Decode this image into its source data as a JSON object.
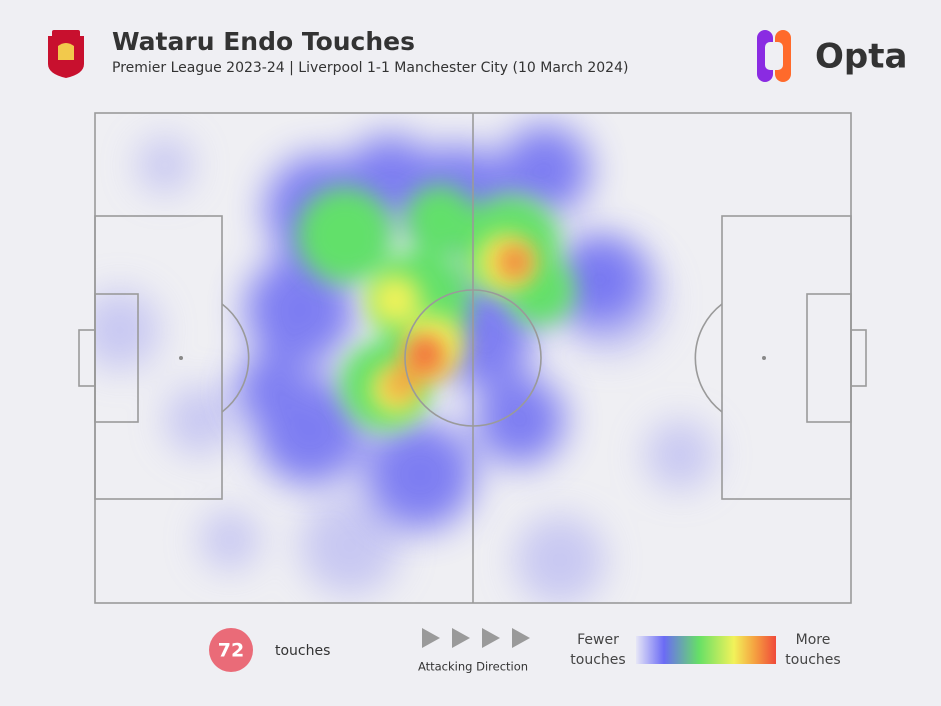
{
  "header": {
    "title": "Wataru Endo Touches",
    "subtitle": "Premier League 2023-24 | Liverpool 1-1 Manchester City (10 March 2024)",
    "brand": "Opta"
  },
  "footer": {
    "touches": 72,
    "touches_label": "touches",
    "direction_label": "Attacking Direction",
    "legend_low": "Fewer touches",
    "legend_high": "More touches"
  }
}
